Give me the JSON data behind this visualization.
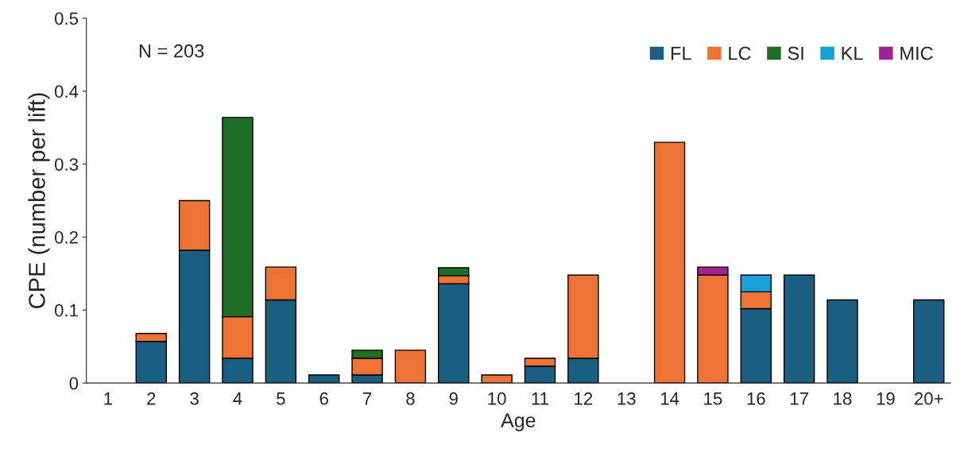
{
  "chart_data": {
    "type": "bar",
    "stacked": true,
    "xlabel": "Age",
    "ylabel": "CPE (number per lift)",
    "categories": [
      "1",
      "2",
      "3",
      "4",
      "5",
      "6",
      "7",
      "8",
      "9",
      "10",
      "11",
      "12",
      "13",
      "14",
      "15",
      "16",
      "17",
      "18",
      "19",
      "20+"
    ],
    "series": [
      {
        "name": "FL",
        "color": "#1a5f82",
        "values": [
          null,
          0.057,
          0.182,
          0.034,
          0.114,
          0.011,
          0.011,
          null,
          0.136,
          null,
          0.023,
          0.034,
          null,
          null,
          null,
          0.102,
          0.148,
          0.114,
          null,
          0.114
        ]
      },
      {
        "name": "LC",
        "color": "#ec7334",
        "values": [
          null,
          0.011,
          0.068,
          0.057,
          0.045,
          null,
          0.023,
          0.045,
          0.011,
          0.011,
          0.011,
          0.114,
          null,
          0.33,
          0.148,
          0.023,
          null,
          null,
          null,
          null
        ]
      },
      {
        "name": "SI",
        "color": "#1e6e25",
        "values": [
          null,
          null,
          null,
          0.273,
          null,
          null,
          0.011,
          null,
          0.011,
          null,
          null,
          null,
          null,
          null,
          null,
          null,
          null,
          null,
          null,
          null
        ]
      },
      {
        "name": "KL",
        "color": "#1aa0d8",
        "values": [
          null,
          null,
          null,
          null,
          null,
          null,
          null,
          null,
          null,
          null,
          null,
          null,
          null,
          null,
          null,
          0.023,
          null,
          null,
          null,
          null
        ]
      },
      {
        "name": "MIC",
        "color": "#a0248f",
        "values": [
          null,
          null,
          null,
          null,
          null,
          null,
          null,
          null,
          null,
          null,
          null,
          null,
          null,
          null,
          0.011,
          null,
          null,
          null,
          null,
          null
        ]
      }
    ],
    "ylim": [
      0,
      0.5
    ],
    "yticks": [
      0,
      0.1,
      0.2,
      0.3,
      0.4,
      0.5
    ],
    "annotations": [
      "N = 203"
    ],
    "legend": "top right",
    "grid": false
  }
}
